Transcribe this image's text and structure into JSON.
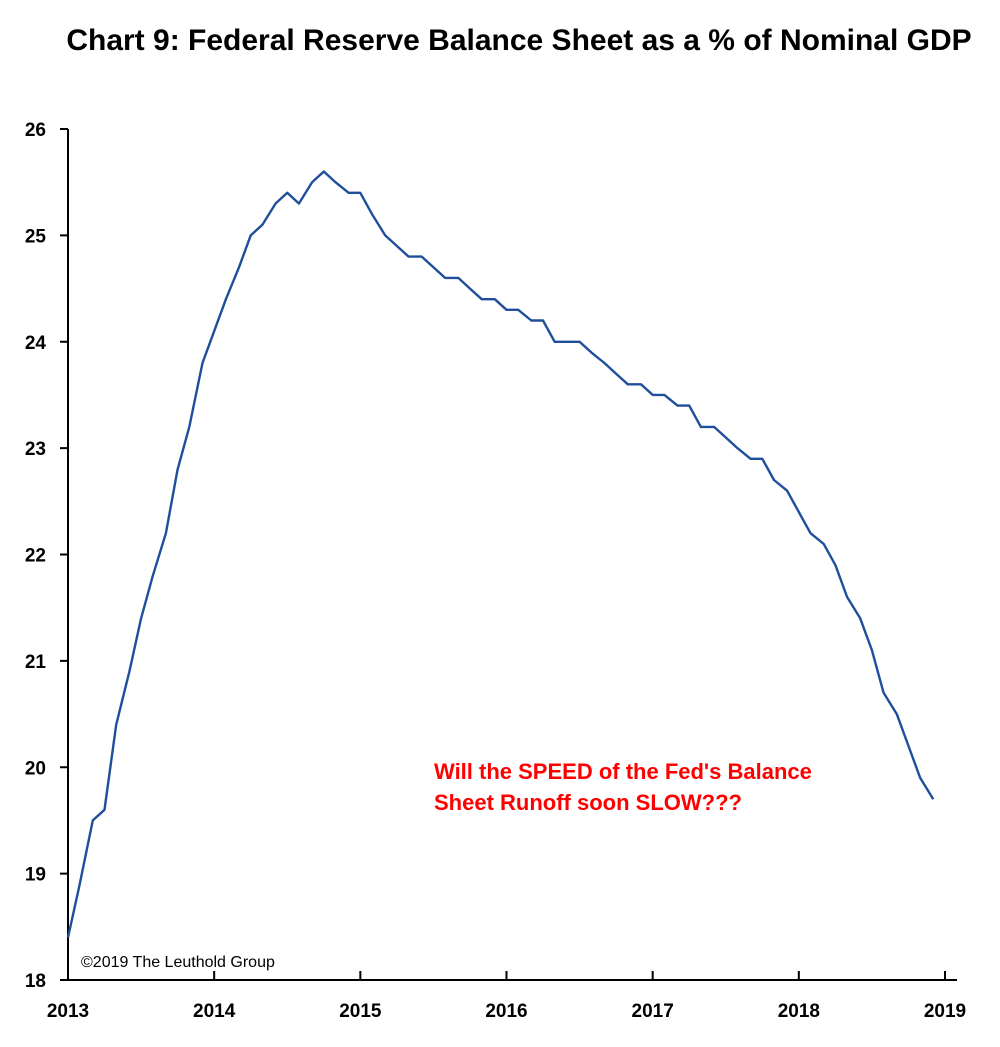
{
  "chart_data": {
    "type": "line",
    "title": "Chart 9: Federal Reserve Balance Sheet as a % of Nominal GDP",
    "xlabel": "",
    "ylabel": "",
    "xlim": [
      2013,
      2019
    ],
    "ylim": [
      18,
      26
    ],
    "x_ticks": [
      "2013",
      "2014",
      "2015",
      "2016",
      "2017",
      "2018",
      "2019"
    ],
    "y_ticks": [
      "18",
      "19",
      "20",
      "21",
      "22",
      "23",
      "24",
      "25",
      "26"
    ],
    "grid": false,
    "series": [
      {
        "color": "#1f4e9c",
        "points": [
          [
            2013.0,
            18.4
          ],
          [
            2013.08,
            18.9
          ],
          [
            2013.17,
            19.5
          ],
          [
            2013.25,
            19.6
          ],
          [
            2013.33,
            20.4
          ],
          [
            2013.42,
            20.9
          ],
          [
            2013.5,
            21.4
          ],
          [
            2013.58,
            21.8
          ],
          [
            2013.67,
            22.2
          ],
          [
            2013.75,
            22.8
          ],
          [
            2013.83,
            23.2
          ],
          [
            2013.92,
            23.8
          ],
          [
            2014.0,
            24.1
          ],
          [
            2014.08,
            24.4
          ],
          [
            2014.17,
            24.7
          ],
          [
            2014.25,
            25.0
          ],
          [
            2014.33,
            25.1
          ],
          [
            2014.42,
            25.3
          ],
          [
            2014.5,
            25.4
          ],
          [
            2014.58,
            25.3
          ],
          [
            2014.67,
            25.5
          ],
          [
            2014.75,
            25.6
          ],
          [
            2014.83,
            25.5
          ],
          [
            2014.92,
            25.4
          ],
          [
            2015.0,
            25.4
          ],
          [
            2015.08,
            25.2
          ],
          [
            2015.17,
            25.0
          ],
          [
            2015.25,
            24.9
          ],
          [
            2015.33,
            24.8
          ],
          [
            2015.42,
            24.8
          ],
          [
            2015.5,
            24.7
          ],
          [
            2015.58,
            24.6
          ],
          [
            2015.67,
            24.6
          ],
          [
            2015.75,
            24.5
          ],
          [
            2015.83,
            24.4
          ],
          [
            2015.92,
            24.4
          ],
          [
            2016.0,
            24.3
          ],
          [
            2016.08,
            24.3
          ],
          [
            2016.17,
            24.2
          ],
          [
            2016.25,
            24.2
          ],
          [
            2016.33,
            24.0
          ],
          [
            2016.42,
            24.0
          ],
          [
            2016.5,
            24.0
          ],
          [
            2016.58,
            23.9
          ],
          [
            2016.67,
            23.8
          ],
          [
            2016.75,
            23.7
          ],
          [
            2016.83,
            23.6
          ],
          [
            2016.92,
            23.6
          ],
          [
            2017.0,
            23.5
          ],
          [
            2017.08,
            23.5
          ],
          [
            2017.17,
            23.4
          ],
          [
            2017.25,
            23.4
          ],
          [
            2017.33,
            23.2
          ],
          [
            2017.42,
            23.2
          ],
          [
            2017.5,
            23.1
          ],
          [
            2017.58,
            23.0
          ],
          [
            2017.67,
            22.9
          ],
          [
            2017.75,
            22.9
          ],
          [
            2017.83,
            22.7
          ],
          [
            2017.92,
            22.6
          ],
          [
            2018.0,
            22.4
          ],
          [
            2018.08,
            22.2
          ],
          [
            2018.17,
            22.1
          ],
          [
            2018.25,
            21.9
          ],
          [
            2018.33,
            21.6
          ],
          [
            2018.42,
            21.4
          ],
          [
            2018.5,
            21.1
          ],
          [
            2018.58,
            20.7
          ],
          [
            2018.67,
            20.5
          ],
          [
            2018.75,
            20.2
          ],
          [
            2018.83,
            19.9
          ],
          [
            2018.92,
            19.7
          ]
        ]
      }
    ],
    "annotations": [
      {
        "lines": [
          "Will the SPEED of the Fed's Balance",
          "Sheet Runoff soon SLOW???"
        ],
        "color": "#ff0000"
      }
    ],
    "credit": "©2019 The Leuthold Group"
  }
}
